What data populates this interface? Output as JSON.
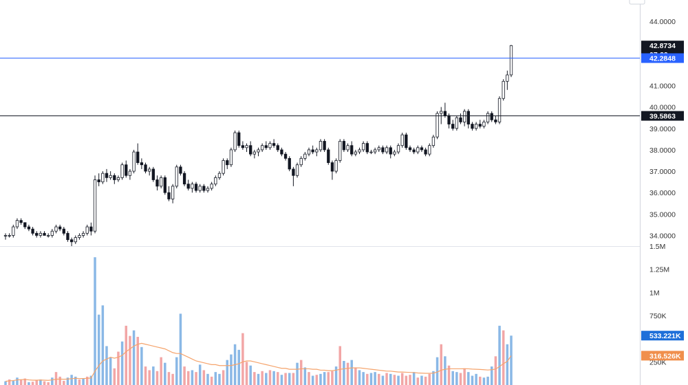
{
  "chart_data": {
    "type": "candlestick",
    "price_axis": {
      "ticks": [
        "44.0000",
        "41.0000",
        "40.0000",
        "39.0000",
        "38.0000",
        "37.0000",
        "36.0000",
        "35.0000",
        "34.0000"
      ],
      "tick_values": [
        44,
        41,
        40,
        39,
        38,
        37,
        36,
        35,
        34
      ],
      "range": [
        33.5,
        45.0
      ]
    },
    "volume_axis": {
      "ticks": [
        "1.5M",
        "1.25M",
        "1M",
        "750K",
        "250K"
      ],
      "tick_values": [
        1500000,
        1250000,
        1000000,
        750000,
        250000
      ],
      "range": [
        0,
        1500000
      ]
    },
    "last_price_label": "42.8734",
    "countdown_label": "07:29",
    "horizontal_lines": [
      {
        "value": 42.2848,
        "label": "42.2848",
        "color": "#2962ff"
      },
      {
        "value": 39.5863,
        "label": "39.5863",
        "color": "#131722"
      }
    ],
    "volume_labels": [
      {
        "value": 533221,
        "label": "533.221K",
        "color": "#1e6fd9"
      },
      {
        "value": 316526,
        "label": "316.526K",
        "color": "#f08f4c"
      }
    ],
    "volume_ma_color": "#f5a36b",
    "up_volume_color": "#8ab8e6",
    "down_volume_color": "#f2a6a6",
    "candles": [
      [
        34.0,
        34.1,
        33.8,
        34.0
      ],
      [
        34.0,
        34.1,
        33.9,
        34.0
      ],
      [
        34.0,
        34.5,
        33.9,
        34.4
      ],
      [
        34.4,
        34.8,
        34.3,
        34.7
      ],
      [
        34.7,
        34.8,
        34.5,
        34.6
      ],
      [
        34.6,
        34.6,
        34.3,
        34.4
      ],
      [
        34.4,
        34.5,
        34.2,
        34.3
      ],
      [
        34.3,
        34.4,
        34.0,
        34.1
      ],
      [
        34.1,
        34.2,
        33.9,
        34.0
      ],
      [
        34.0,
        34.2,
        33.9,
        34.1
      ],
      [
        34.1,
        34.2,
        34.0,
        34.0
      ],
      [
        34.0,
        34.1,
        33.9,
        34.0
      ],
      [
        34.0,
        34.3,
        33.9,
        34.2
      ],
      [
        34.2,
        34.5,
        34.1,
        34.4
      ],
      [
        34.4,
        34.5,
        34.2,
        34.3
      ],
      [
        34.3,
        34.4,
        34.0,
        34.1
      ],
      [
        34.1,
        34.2,
        33.7,
        33.8
      ],
      [
        33.8,
        33.9,
        33.5,
        33.7
      ],
      [
        33.7,
        34.0,
        33.6,
        33.9
      ],
      [
        33.9,
        34.1,
        33.8,
        34.0
      ],
      [
        34.0,
        34.2,
        33.9,
        34.1
      ],
      [
        34.1,
        34.5,
        34.0,
        34.4
      ],
      [
        34.4,
        34.6,
        34.0,
        34.2
      ],
      [
        34.2,
        36.8,
        34.1,
        36.6
      ],
      [
        36.6,
        36.9,
        36.3,
        36.5
      ],
      [
        36.5,
        37.0,
        36.4,
        36.9
      ],
      [
        36.9,
        37.1,
        36.5,
        36.7
      ],
      [
        36.7,
        37.0,
        36.6,
        36.8
      ],
      [
        36.8,
        36.9,
        36.4,
        36.6
      ],
      [
        36.6,
        36.8,
        36.5,
        36.7
      ],
      [
        36.7,
        37.4,
        36.6,
        37.3
      ],
      [
        37.3,
        37.5,
        36.7,
        36.8
      ],
      [
        36.8,
        37.1,
        36.6,
        37.0
      ],
      [
        37.0,
        38.0,
        36.9,
        37.9
      ],
      [
        37.9,
        38.3,
        37.3,
        37.4
      ],
      [
        37.4,
        37.6,
        37.1,
        37.3
      ],
      [
        37.3,
        37.4,
        36.9,
        37.0
      ],
      [
        37.0,
        37.2,
        36.8,
        37.1
      ],
      [
        37.1,
        37.2,
        36.5,
        36.6
      ],
      [
        36.6,
        36.8,
        36.1,
        36.3
      ],
      [
        36.3,
        36.8,
        36.2,
        36.7
      ],
      [
        36.7,
        36.8,
        35.9,
        36.0
      ],
      [
        36.0,
        36.3,
        35.6,
        35.7
      ],
      [
        35.7,
        36.4,
        35.5,
        36.3
      ],
      [
        36.3,
        37.3,
        36.2,
        37.2
      ],
      [
        37.2,
        37.3,
        36.8,
        36.9
      ],
      [
        36.9,
        37.0,
        36.3,
        36.4
      ],
      [
        36.4,
        36.6,
        36.1,
        36.2
      ],
      [
        36.2,
        36.5,
        36.0,
        36.4
      ],
      [
        36.4,
        36.5,
        36.0,
        36.1
      ],
      [
        36.1,
        36.4,
        36.0,
        36.3
      ],
      [
        36.3,
        36.4,
        36.0,
        36.1
      ],
      [
        36.1,
        36.3,
        36.0,
        36.2
      ],
      [
        36.2,
        36.5,
        36.1,
        36.4
      ],
      [
        36.4,
        36.8,
        36.3,
        36.7
      ],
      [
        36.7,
        37.0,
        36.6,
        36.9
      ],
      [
        36.9,
        37.6,
        36.8,
        37.5
      ],
      [
        37.5,
        37.6,
        37.1,
        37.3
      ],
      [
        37.3,
        38.1,
        37.2,
        38.0
      ],
      [
        38.0,
        38.9,
        37.9,
        38.8
      ],
      [
        38.8,
        38.9,
        38.1,
        38.2
      ],
      [
        38.2,
        38.4,
        38.0,
        38.1
      ],
      [
        38.1,
        38.3,
        37.9,
        38.2
      ],
      [
        38.2,
        38.4,
        37.7,
        37.8
      ],
      [
        37.8,
        38.0,
        37.6,
        37.9
      ],
      [
        37.9,
        38.1,
        37.7,
        38.0
      ],
      [
        38.0,
        38.3,
        37.9,
        38.2
      ],
      [
        38.2,
        38.4,
        38.0,
        38.1
      ],
      [
        38.1,
        38.4,
        38.0,
        38.3
      ],
      [
        38.3,
        38.5,
        38.1,
        38.2
      ],
      [
        38.2,
        38.3,
        37.9,
        38.0
      ],
      [
        38.0,
        38.1,
        37.7,
        37.8
      ],
      [
        37.8,
        37.9,
        37.5,
        37.6
      ],
      [
        37.6,
        37.7,
        37.0,
        37.1
      ],
      [
        37.1,
        37.2,
        36.3,
        36.8
      ],
      [
        36.8,
        37.4,
        36.7,
        37.3
      ],
      [
        37.3,
        37.7,
        37.2,
        37.6
      ],
      [
        37.6,
        37.9,
        37.5,
        37.8
      ],
      [
        37.8,
        38.1,
        37.7,
        38.0
      ],
      [
        38.0,
        38.2,
        37.8,
        37.9
      ],
      [
        37.9,
        38.1,
        37.7,
        38.0
      ],
      [
        38.0,
        38.5,
        37.9,
        38.4
      ],
      [
        38.4,
        38.5,
        37.9,
        38.0
      ],
      [
        38.0,
        38.1,
        37.3,
        37.4
      ],
      [
        37.4,
        37.5,
        36.6,
        37.0
      ],
      [
        37.0,
        37.6,
        36.9,
        37.5
      ],
      [
        37.5,
        38.5,
        37.4,
        38.4
      ],
      [
        38.4,
        38.5,
        37.9,
        38.0
      ],
      [
        38.0,
        38.3,
        37.9,
        38.2
      ],
      [
        38.2,
        38.4,
        37.7,
        37.8
      ],
      [
        37.8,
        38.0,
        37.7,
        37.9
      ],
      [
        37.9,
        38.1,
        37.8,
        38.0
      ],
      [
        38.0,
        38.4,
        37.9,
        38.3
      ],
      [
        38.3,
        38.4,
        37.8,
        37.9
      ],
      [
        37.9,
        38.0,
        37.8,
        37.9
      ],
      [
        37.9,
        38.1,
        37.8,
        38.0
      ],
      [
        38.0,
        38.2,
        37.9,
        38.1
      ],
      [
        38.1,
        38.2,
        37.8,
        37.9
      ],
      [
        37.9,
        38.2,
        37.8,
        38.1
      ],
      [
        38.1,
        38.2,
        37.6,
        37.8
      ],
      [
        37.8,
        38.0,
        37.7,
        37.9
      ],
      [
        37.9,
        38.3,
        37.8,
        38.2
      ],
      [
        38.2,
        38.8,
        38.1,
        38.7
      ],
      [
        38.7,
        38.8,
        38.0,
        38.1
      ],
      [
        38.1,
        38.2,
        37.9,
        38.0
      ],
      [
        38.0,
        38.1,
        37.8,
        37.9
      ],
      [
        37.9,
        38.2,
        37.8,
        38.1
      ],
      [
        38.1,
        38.2,
        37.9,
        38.0
      ],
      [
        38.0,
        38.1,
        37.7,
        37.8
      ],
      [
        37.8,
        38.3,
        37.7,
        38.2
      ],
      [
        38.2,
        38.7,
        38.1,
        38.6
      ],
      [
        38.6,
        39.8,
        38.5,
        39.7
      ],
      [
        39.7,
        40.0,
        39.2,
        39.8
      ],
      [
        39.8,
        40.2,
        39.5,
        39.6
      ],
      [
        39.6,
        39.7,
        39.0,
        39.2
      ],
      [
        39.2,
        39.4,
        38.9,
        39.0
      ],
      [
        39.0,
        39.6,
        38.9,
        39.5
      ],
      [
        39.5,
        39.7,
        39.2,
        39.3
      ],
      [
        39.3,
        39.9,
        39.1,
        39.8
      ],
      [
        39.8,
        39.9,
        39.0,
        39.2
      ],
      [
        39.2,
        39.3,
        38.9,
        39.0
      ],
      [
        39.0,
        39.3,
        38.9,
        39.2
      ],
      [
        39.2,
        39.4,
        39.0,
        39.1
      ],
      [
        39.1,
        39.4,
        39.0,
        39.3
      ],
      [
        39.3,
        39.8,
        39.2,
        39.7
      ],
      [
        39.7,
        39.8,
        39.3,
        39.4
      ],
      [
        39.4,
        39.6,
        39.2,
        39.3
      ],
      [
        39.3,
        40.5,
        39.2,
        40.4
      ],
      [
        40.4,
        41.3,
        40.3,
        41.2
      ],
      [
        41.2,
        41.7,
        40.8,
        41.5
      ],
      [
        41.5,
        42.9,
        41.4,
        42.87
      ]
    ],
    "volumes": [
      [
        40000,
        1
      ],
      [
        60000,
        0
      ],
      [
        45000,
        1
      ],
      [
        80000,
        1
      ],
      [
        55000,
        0
      ],
      [
        70000,
        0
      ],
      [
        30000,
        1
      ],
      [
        35000,
        0
      ],
      [
        50000,
        0
      ],
      [
        60000,
        1
      ],
      [
        40000,
        0
      ],
      [
        30000,
        0
      ],
      [
        80000,
        1
      ],
      [
        140000,
        0
      ],
      [
        90000,
        0
      ],
      [
        45000,
        0
      ],
      [
        80000,
        1
      ],
      [
        110000,
        1
      ],
      [
        90000,
        1
      ],
      [
        60000,
        0
      ],
      [
        70000,
        1
      ],
      [
        90000,
        0
      ],
      [
        100000,
        1
      ],
      [
        1380000,
        1
      ],
      [
        760000,
        1
      ],
      [
        860000,
        1
      ],
      [
        420000,
        1
      ],
      [
        300000,
        1
      ],
      [
        180000,
        0
      ],
      [
        360000,
        0
      ],
      [
        470000,
        1
      ],
      [
        640000,
        0
      ],
      [
        530000,
        0
      ],
      [
        590000,
        1
      ],
      [
        520000,
        0
      ],
      [
        410000,
        1
      ],
      [
        200000,
        0
      ],
      [
        160000,
        0
      ],
      [
        200000,
        1
      ],
      [
        150000,
        0
      ],
      [
        300000,
        0
      ],
      [
        240000,
        1
      ],
      [
        140000,
        0
      ],
      [
        120000,
        0
      ],
      [
        300000,
        1
      ],
      [
        770000,
        1
      ],
      [
        200000,
        0
      ],
      [
        150000,
        0
      ],
      [
        160000,
        1
      ],
      [
        140000,
        0
      ],
      [
        220000,
        1
      ],
      [
        160000,
        0
      ],
      [
        120000,
        1
      ],
      [
        90000,
        0
      ],
      [
        140000,
        1
      ],
      [
        120000,
        1
      ],
      [
        160000,
        0
      ],
      [
        270000,
        1
      ],
      [
        330000,
        1
      ],
      [
        440000,
        1
      ],
      [
        380000,
        1
      ],
      [
        560000,
        0
      ],
      [
        250000,
        0
      ],
      [
        210000,
        1
      ],
      [
        140000,
        0
      ],
      [
        120000,
        1
      ],
      [
        150000,
        0
      ],
      [
        130000,
        1
      ],
      [
        160000,
        0
      ],
      [
        150000,
        1
      ],
      [
        140000,
        0
      ],
      [
        110000,
        1
      ],
      [
        130000,
        0
      ],
      [
        130000,
        1
      ],
      [
        130000,
        0
      ],
      [
        240000,
        1
      ],
      [
        270000,
        0
      ],
      [
        190000,
        1
      ],
      [
        140000,
        0
      ],
      [
        100000,
        1
      ],
      [
        110000,
        0
      ],
      [
        120000,
        1
      ],
      [
        140000,
        1
      ],
      [
        140000,
        0
      ],
      [
        150000,
        0
      ],
      [
        200000,
        1
      ],
      [
        420000,
        0
      ],
      [
        260000,
        1
      ],
      [
        240000,
        0
      ],
      [
        270000,
        1
      ],
      [
        190000,
        0
      ],
      [
        160000,
        1
      ],
      [
        140000,
        1
      ],
      [
        120000,
        0
      ],
      [
        130000,
        1
      ],
      [
        140000,
        1
      ],
      [
        120000,
        0
      ],
      [
        100000,
        1
      ],
      [
        130000,
        0
      ],
      [
        120000,
        1
      ],
      [
        110000,
        0
      ],
      [
        100000,
        1
      ],
      [
        130000,
        0
      ],
      [
        100000,
        0
      ],
      [
        110000,
        0
      ],
      [
        140000,
        1
      ],
      [
        80000,
        0
      ],
      [
        100000,
        1
      ],
      [
        90000,
        0
      ],
      [
        120000,
        0
      ],
      [
        150000,
        1
      ],
      [
        300000,
        1
      ],
      [
        440000,
        0
      ],
      [
        310000,
        1
      ],
      [
        210000,
        0
      ],
      [
        150000,
        1
      ],
      [
        140000,
        1
      ],
      [
        130000,
        0
      ],
      [
        180000,
        0
      ],
      [
        140000,
        1
      ],
      [
        100000,
        1
      ],
      [
        120000,
        1
      ],
      [
        90000,
        0
      ],
      [
        80000,
        1
      ],
      [
        90000,
        1
      ],
      [
        200000,
        1
      ],
      [
        310000,
        0
      ],
      [
        640000,
        1
      ],
      [
        590000,
        0
      ],
      [
        440000,
        1
      ],
      [
        533221,
        1
      ]
    ],
    "volume_ma": [
      40000,
      45000,
      48000,
      55000,
      58000,
      60000,
      55000,
      52000,
      52000,
      54000,
      52000,
      50000,
      55000,
      62000,
      64000,
      62000,
      64000,
      68000,
      72000,
      70000,
      70000,
      72000,
      75000,
      150000,
      210000,
      260000,
      280000,
      300000,
      290000,
      300000,
      320000,
      360000,
      390000,
      420000,
      440000,
      450000,
      440000,
      430000,
      420000,
      410000,
      400000,
      390000,
      370000,
      350000,
      340000,
      340000,
      320000,
      300000,
      280000,
      260000,
      250000,
      240000,
      230000,
      220000,
      220000,
      210000,
      210000,
      210000,
      210000,
      220000,
      230000,
      250000,
      260000,
      260000,
      250000,
      240000,
      230000,
      220000,
      210000,
      200000,
      190000,
      180000,
      180000,
      170000,
      170000,
      170000,
      175000,
      175000,
      175000,
      170000,
      170000,
      160000,
      160000,
      155000,
      155000,
      160000,
      170000,
      175000,
      180000,
      185000,
      185000,
      185000,
      180000,
      175000,
      170000,
      165000,
      160000,
      155000,
      150000,
      150000,
      145000,
      140000,
      140000,
      138000,
      136000,
      134000,
      130000,
      128000,
      126000,
      126000,
      128000,
      140000,
      160000,
      170000,
      175000,
      175000,
      175000,
      175000,
      176000,
      175000,
      172000,
      170000,
      168000,
      165000,
      162000,
      165000,
      172000,
      200000,
      230000,
      255000,
      316526
    ]
  }
}
